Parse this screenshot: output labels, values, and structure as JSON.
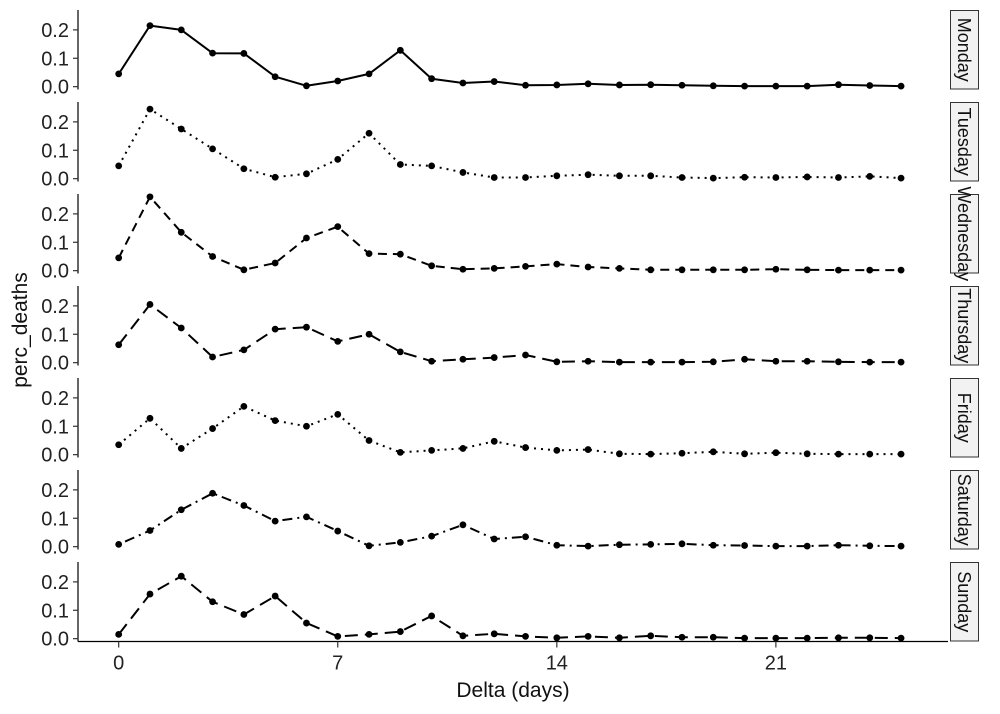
{
  "chart_data": {
    "type": "line",
    "xlabel": "Delta (days)",
    "ylabel": "perc_deaths",
    "xlim": [
      -1.3,
      26.5
    ],
    "ylim": [
      -0.01,
      0.27
    ],
    "x_ticks": [
      0,
      7,
      14,
      21
    ],
    "y_ticks": [
      0.0,
      0.1,
      0.2
    ],
    "y_tick_labels": [
      "0.0",
      "0.1",
      "0.2"
    ],
    "x": [
      0,
      1,
      2,
      3,
      4,
      5,
      6,
      7,
      8,
      9,
      10,
      11,
      12,
      13,
      14,
      15,
      16,
      17,
      18,
      19,
      20,
      21,
      22,
      23,
      24,
      25
    ],
    "facet_strip_position": "right",
    "grid": false,
    "line_color": "#000000",
    "series": [
      {
        "name": "Monday",
        "linestyle": "solid",
        "values": [
          0.045,
          0.215,
          0.2,
          0.118,
          0.117,
          0.035,
          0.003,
          0.02,
          0.045,
          0.128,
          0.028,
          0.013,
          0.018,
          0.005,
          0.006,
          0.01,
          0.006,
          0.007,
          0.005,
          0.003,
          0.002,
          0.002,
          0.002,
          0.007,
          0.004,
          0.002
        ]
      },
      {
        "name": "Tuesday",
        "linestyle": "dotted",
        "values": [
          0.045,
          0.245,
          0.175,
          0.105,
          0.035,
          0.005,
          0.017,
          0.068,
          0.16,
          0.05,
          0.045,
          0.022,
          0.004,
          0.004,
          0.01,
          0.014,
          0.01,
          0.01,
          0.004,
          0.002,
          0.005,
          0.004,
          0.006,
          0.004,
          0.008,
          0.002
        ]
      },
      {
        "name": "Wednesday",
        "linestyle": "dashed",
        "values": [
          0.045,
          0.26,
          0.135,
          0.05,
          0.003,
          0.027,
          0.115,
          0.155,
          0.06,
          0.058,
          0.017,
          0.005,
          0.008,
          0.015,
          0.023,
          0.013,
          0.008,
          0.003,
          0.003,
          0.003,
          0.003,
          0.005,
          0.003,
          0.002,
          0.002,
          0.002
        ]
      },
      {
        "name": "Thursday",
        "linestyle": "longdash",
        "values": [
          0.063,
          0.205,
          0.122,
          0.02,
          0.045,
          0.118,
          0.125,
          0.075,
          0.1,
          0.038,
          0.005,
          0.012,
          0.018,
          0.027,
          0.003,
          0.005,
          0.002,
          0.002,
          0.002,
          0.003,
          0.012,
          0.005,
          0.005,
          0.003,
          0.002,
          0.002
        ]
      },
      {
        "name": "Friday",
        "linestyle": "dotted",
        "values": [
          0.035,
          0.128,
          0.022,
          0.092,
          0.17,
          0.12,
          0.1,
          0.142,
          0.05,
          0.008,
          0.015,
          0.022,
          0.047,
          0.025,
          0.015,
          0.018,
          0.003,
          0.002,
          0.005,
          0.01,
          0.003,
          0.007,
          0.003,
          0.002,
          0.002,
          0.002
        ]
      },
      {
        "name": "Saturday",
        "linestyle": "dotdash",
        "values": [
          0.008,
          0.057,
          0.13,
          0.188,
          0.145,
          0.09,
          0.105,
          0.055,
          0.003,
          0.015,
          0.037,
          0.077,
          0.027,
          0.035,
          0.005,
          0.002,
          0.007,
          0.008,
          0.01,
          0.005,
          0.004,
          0.002,
          0.002,
          0.005,
          0.003,
          0.002
        ]
      },
      {
        "name": "Sunday",
        "linestyle": "longdash",
        "values": [
          0.015,
          0.157,
          0.22,
          0.13,
          0.085,
          0.15,
          0.055,
          0.008,
          0.015,
          0.025,
          0.08,
          0.01,
          0.017,
          0.008,
          0.003,
          0.008,
          0.003,
          0.01,
          0.005,
          0.005,
          0.002,
          0.002,
          0.002,
          0.003,
          0.003,
          0.002
        ]
      }
    ]
  }
}
